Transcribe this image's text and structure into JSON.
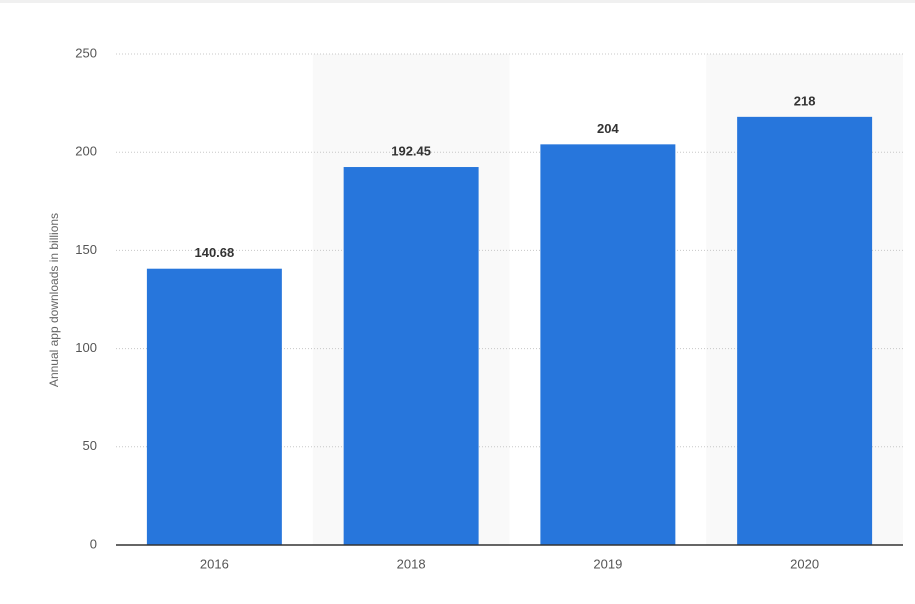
{
  "chart_data": {
    "type": "bar",
    "y_label": "Annual app downloads in billions",
    "categories": [
      "2016",
      "2018",
      "2019",
      "2020"
    ],
    "values": [
      140.68,
      192.45,
      204,
      218
    ],
    "color": "#2776dc",
    "ylim": [
      0,
      250
    ],
    "yticks": [
      0,
      50,
      100,
      150,
      200,
      250
    ],
    "grid": true
  }
}
